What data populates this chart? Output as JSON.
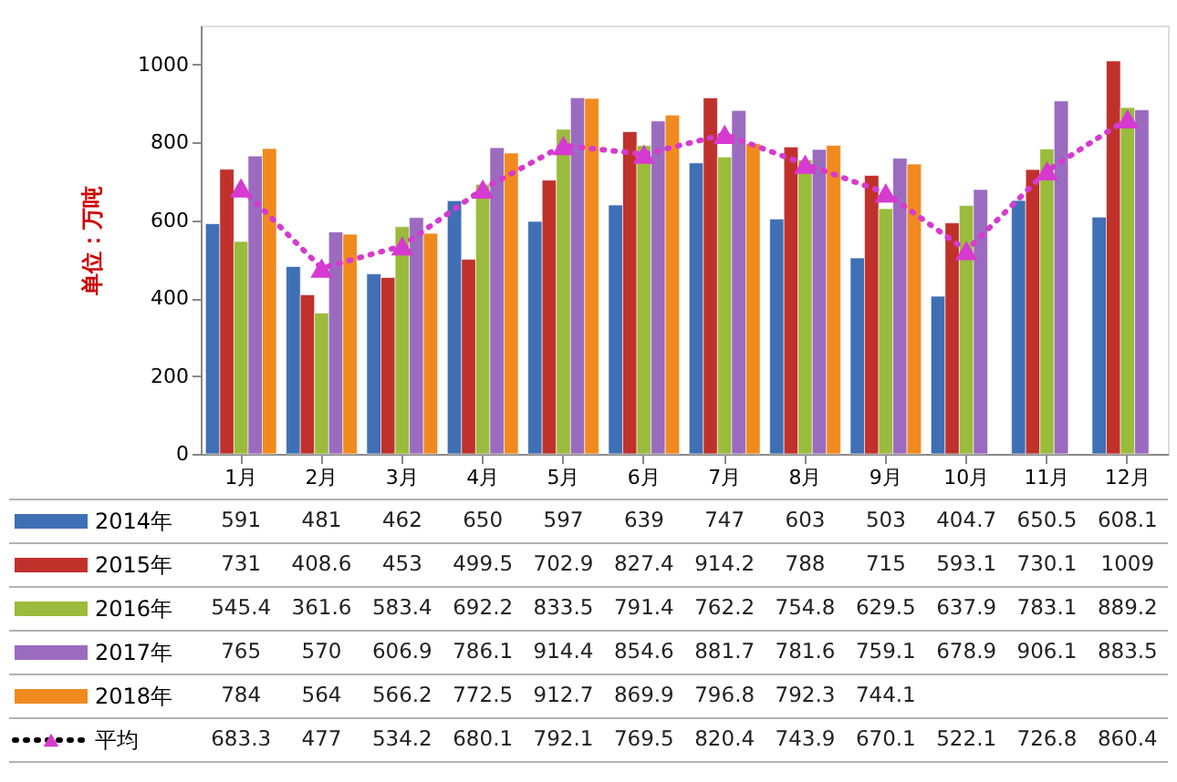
{
  "chart_data": {
    "type": "bar",
    "ylabel": "单位：万吨",
    "categories": [
      "1月",
      "2月",
      "3月",
      "4月",
      "5月",
      "6月",
      "7月",
      "8月",
      "9月",
      "10月",
      "11月",
      "12月"
    ],
    "series": [
      {
        "name": "2014年",
        "color": "#3f6fb5",
        "values": [
          591,
          481,
          462,
          650,
          597,
          639,
          747,
          603,
          503,
          404.7,
          650.5,
          608.1
        ]
      },
      {
        "name": "2015年",
        "color": "#c0312c",
        "values": [
          731,
          408.6,
          453,
          499.5,
          702.9,
          827.4,
          914.2,
          788,
          715,
          593.1,
          730.1,
          1009
        ]
      },
      {
        "name": "2016年",
        "color": "#9bbb3c",
        "values": [
          545.4,
          361.6,
          583.4,
          692.2,
          833.5,
          791.4,
          762.2,
          754.8,
          629.5,
          637.9,
          783.1,
          889.2
        ]
      },
      {
        "name": "2017年",
        "color": "#9b6bc0",
        "values": [
          765,
          570,
          606.9,
          786.1,
          914.4,
          854.6,
          881.7,
          781.6,
          759.1,
          678.9,
          906.1,
          883.5
        ]
      },
      {
        "name": "2018年",
        "color": "#f08a1f",
        "values": [
          784,
          564,
          566.2,
          772.5,
          912.7,
          869.9,
          796.8,
          792.3,
          744.1,
          null,
          null,
          null
        ]
      },
      {
        "name": "平均",
        "type": "line",
        "color": "#d63ad0",
        "marker": "triangle",
        "line_style": "dotted",
        "values": [
          683.3,
          477,
          534.2,
          680.1,
          792.1,
          769.5,
          820.4,
          743.9,
          670.1,
          522.1,
          726.8,
          860.4
        ]
      }
    ],
    "ylim": [
      0,
      1100
    ],
    "yticks": [
      0,
      200,
      400,
      600,
      800,
      1000
    ],
    "legend": "bottom",
    "data_labels": true
  }
}
